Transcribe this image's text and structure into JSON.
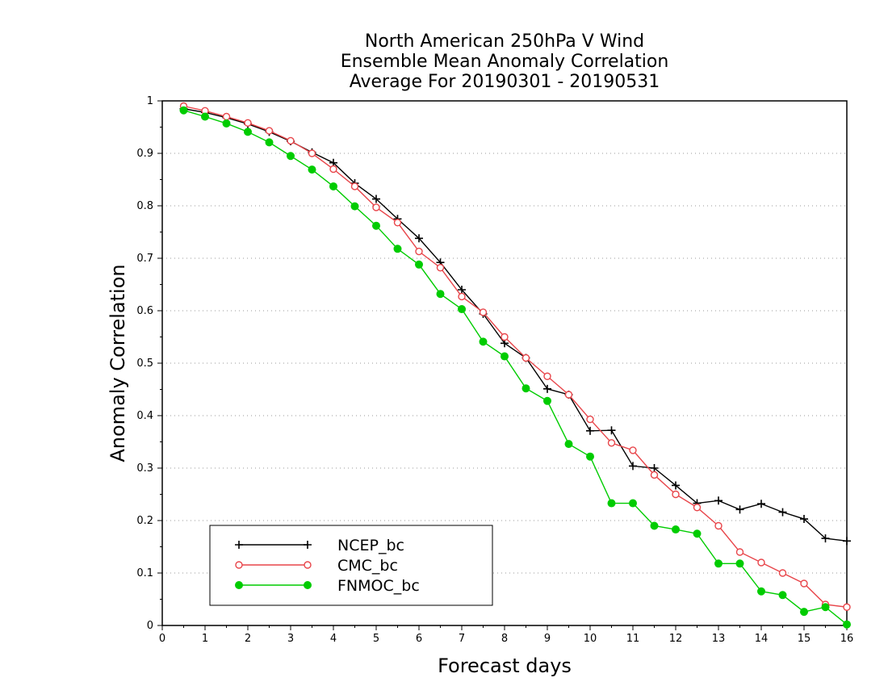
{
  "chart_data": {
    "type": "line",
    "title": [
      "North American 250hPa V Wind",
      "Ensemble Mean Anomaly Correlation",
      "Average For 20190301 - 20190531"
    ],
    "xlabel": "Forecast days",
    "ylabel": "Anomaly Correlation",
    "xlim": [
      0,
      16
    ],
    "ylim": [
      0,
      1
    ],
    "xticks": [
      "0",
      "1",
      "2",
      "3",
      "4",
      "5",
      "6",
      "7",
      "8",
      "9",
      "10",
      "11",
      "12",
      "13",
      "14",
      "15",
      "16"
    ],
    "yticks": [
      "0",
      "0.1",
      "0.2",
      "0.3",
      "0.4",
      "0.5",
      "0.6",
      "0.7",
      "0.8",
      "0.9",
      "1"
    ],
    "grid": "horizontal-dotted",
    "legend_position": "bottom-left",
    "x": [
      0.5,
      1,
      1.5,
      2,
      2.5,
      3,
      3.5,
      4,
      4.5,
      5,
      5.5,
      6,
      6.5,
      7,
      7.5,
      8,
      8.5,
      9,
      9.5,
      10,
      10.5,
      11,
      11.5,
      12,
      12.5,
      13,
      13.5,
      14,
      14.5,
      15,
      15.5,
      16
    ],
    "series": [
      {
        "name": "NCEP_bc",
        "color": "#000000",
        "marker": "plus",
        "values": [
          0.985,
          0.978,
          0.968,
          0.956,
          0.941,
          0.923,
          0.902,
          0.882,
          0.843,
          0.813,
          0.775,
          0.738,
          0.692,
          0.64,
          0.594,
          0.538,
          0.51,
          0.451,
          0.44,
          0.371,
          0.372,
          0.304,
          0.3,
          0.267,
          0.233,
          0.238,
          0.221,
          0.232,
          0.216,
          0.203,
          0.166,
          0.161
        ]
      },
      {
        "name": "CMC_bc",
        "color": "#e8454a",
        "marker": "open-circle",
        "values": [
          0.99,
          0.981,
          0.97,
          0.958,
          0.943,
          0.924,
          0.9,
          0.87,
          0.837,
          0.797,
          0.768,
          0.713,
          0.682,
          0.627,
          0.597,
          0.55,
          0.51,
          0.475,
          0.44,
          0.393,
          0.348,
          0.334,
          0.287,
          0.25,
          0.225,
          0.19,
          0.14,
          0.12,
          0.1,
          0.08,
          0.04,
          0.035
        ]
      },
      {
        "name": "FNMOC_bc",
        "color": "#00cc00",
        "marker": "filled-circle",
        "values": [
          0.982,
          0.97,
          0.957,
          0.941,
          0.921,
          0.895,
          0.869,
          0.837,
          0.799,
          0.762,
          0.718,
          0.688,
          0.632,
          0.603,
          0.541,
          0.513,
          0.452,
          0.428,
          0.346,
          0.322,
          0.233,
          0.233,
          0.19,
          0.183,
          0.175,
          0.118,
          0.118,
          0.065,
          0.058,
          0.026,
          0.035,
          0.002
        ]
      }
    ]
  }
}
